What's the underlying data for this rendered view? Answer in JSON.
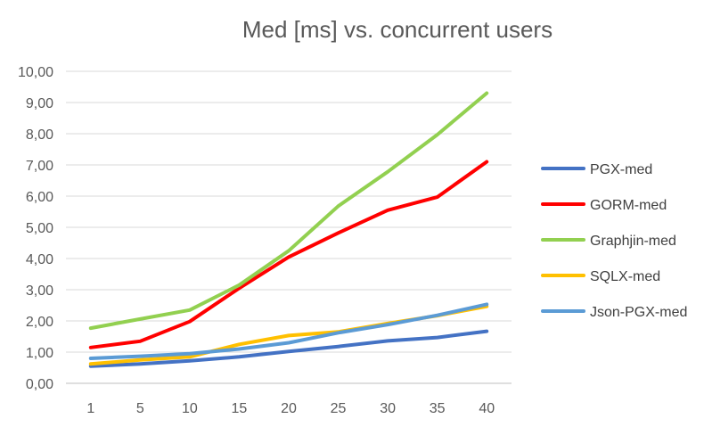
{
  "chart_data": {
    "type": "line",
    "title": "Med [ms] vs. concurrent users",
    "xlabel": "",
    "ylabel": "",
    "categories": [
      "1",
      "5",
      "10",
      "15",
      "20",
      "25",
      "30",
      "35",
      "40"
    ],
    "y_ticks": [
      "0,00",
      "1,00",
      "2,00",
      "3,00",
      "4,00",
      "5,00",
      "6,00",
      "7,00",
      "8,00",
      "9,00",
      "10,00"
    ],
    "ylim": [
      0,
      10
    ],
    "grid": true,
    "legend_position": "right",
    "series": [
      {
        "name": "PGX-med",
        "color": "#4472C4",
        "values": [
          0.55,
          0.62,
          0.72,
          0.85,
          1.02,
          1.18,
          1.36,
          1.47,
          1.67
        ]
      },
      {
        "name": "GORM-med",
        "color": "#FF0000",
        "values": [
          1.15,
          1.35,
          1.98,
          3.05,
          4.05,
          4.82,
          5.55,
          5.97,
          7.1
        ]
      },
      {
        "name": "Graphjin-med",
        "color": "#92D050",
        "values": [
          1.77,
          2.06,
          2.35,
          3.15,
          4.25,
          5.68,
          6.78,
          7.97,
          9.3
        ]
      },
      {
        "name": "SQLX-med",
        "color": "#FFC000",
        "values": [
          0.62,
          0.75,
          0.85,
          1.25,
          1.53,
          1.65,
          1.92,
          2.17,
          2.47
        ]
      },
      {
        "name": "Json-PGX-med",
        "color": "#5B9BD5",
        "values": [
          0.8,
          0.87,
          0.95,
          1.1,
          1.3,
          1.62,
          1.88,
          2.18,
          2.53
        ]
      }
    ]
  }
}
